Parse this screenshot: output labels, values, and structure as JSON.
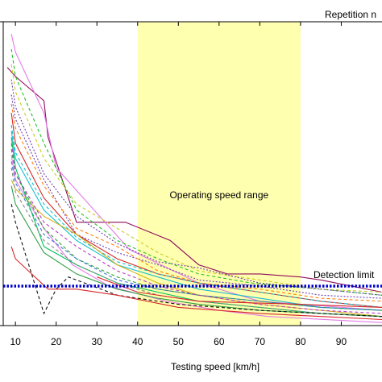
{
  "chart_data": {
    "type": "line",
    "xlabel": "Testing speed [km/h]",
    "ylabel": "",
    "title": "",
    "xlim": [
      7,
      100
    ],
    "ylim": [
      0,
      100
    ],
    "xticks": [
      10,
      20,
      30,
      40,
      50,
      60,
      70,
      80,
      90
    ],
    "xtick_labels": [
      "10",
      "20",
      "30",
      "40",
      "50",
      "60",
      "70",
      "80",
      "90"
    ],
    "grid": false,
    "legend_text": "Repetition n",
    "highlight_band": {
      "x": [
        40,
        80
      ],
      "label": "Operating speed range",
      "color": "#ffffb0"
    },
    "threshold": {
      "y": 13,
      "label": "Detection limit",
      "color": "#0000cc"
    },
    "series": [
      {
        "color": "#8e0c5a",
        "dash": "",
        "x": [
          8,
          10,
          17,
          18,
          25,
          37,
          48,
          55,
          62,
          70,
          80,
          85,
          100
        ],
        "y": [
          85,
          82,
          74,
          62,
          34,
          34,
          28,
          20,
          17,
          17,
          16,
          15,
          11
        ]
      },
      {
        "color": "#e27be6",
        "dash": "",
        "x": [
          9,
          10,
          17,
          20,
          28,
          38,
          55,
          70,
          100
        ],
        "y": [
          96,
          90,
          70,
          52,
          40,
          25,
          14,
          8,
          5
        ]
      },
      {
        "color": "#e27be6",
        "dash": "",
        "x": [
          9,
          10,
          17,
          24,
          33,
          47,
          60,
          72,
          100
        ],
        "y": [
          56,
          48,
          32,
          20,
          13,
          8,
          5,
          3,
          1
        ]
      },
      {
        "color": "#21c221",
        "dash": "4 3",
        "x": [
          9,
          10,
          17,
          25,
          35,
          45,
          55,
          68,
          85,
          100
        ],
        "y": [
          91,
          82,
          60,
          38,
          28,
          22,
          17,
          14,
          12,
          10
        ]
      },
      {
        "color": "#c9cc2a",
        "dash": "4 3",
        "x": [
          9,
          10,
          17,
          25,
          35,
          45,
          55,
          70,
          85,
          100
        ],
        "y": [
          86,
          77,
          55,
          40,
          32,
          24,
          18,
          15,
          12,
          11
        ]
      },
      {
        "color": "#6b3fb0",
        "dash": "2 2",
        "x": [
          9,
          10,
          17,
          25,
          35,
          45,
          55,
          70,
          85,
          100
        ],
        "y": [
          81,
          72,
          50,
          36,
          27,
          21,
          19,
          14,
          12,
          10
        ]
      },
      {
        "color": "#6b3fb0",
        "dash": "2 2",
        "x": [
          9,
          10,
          17,
          25,
          35,
          45,
          55,
          70,
          85,
          100
        ],
        "y": [
          76,
          68,
          48,
          30,
          24,
          20,
          15,
          13,
          10,
          9
        ]
      },
      {
        "color": "#ff7f0e",
        "dash": "4 3",
        "x": [
          9,
          10,
          17,
          25,
          35,
          45,
          55,
          70,
          85,
          100
        ],
        "y": [
          73,
          65,
          46,
          32,
          26,
          18,
          14,
          12,
          9,
          8
        ]
      },
      {
        "color": "#d62728",
        "dash": "",
        "x": [
          9,
          10,
          17,
          25,
          35,
          45,
          55,
          70,
          85,
          100
        ],
        "y": [
          70,
          60,
          42,
          30,
          22,
          17,
          14,
          11,
          8,
          6
        ]
      },
      {
        "color": "#17becf",
        "dash": "4 3",
        "x": [
          9,
          10,
          17,
          25,
          35,
          45,
          55,
          70,
          85,
          100
        ],
        "y": [
          66,
          57,
          40,
          29,
          21,
          17,
          14,
          11,
          8,
          6
        ]
      },
      {
        "color": "#17becf",
        "dash": "",
        "x": [
          9,
          10,
          17,
          25,
          35,
          45,
          55,
          70,
          85,
          100
        ],
        "y": [
          64,
          55,
          38,
          28,
          20,
          16,
          12,
          9,
          6,
          5
        ]
      },
      {
        "color": "#d6b21c",
        "dash": "",
        "x": [
          9,
          10,
          17,
          25,
          35,
          45,
          55,
          70,
          85,
          100
        ],
        "y": [
          48,
          45,
          36,
          30,
          20,
          14,
          10,
          7,
          5,
          3
        ]
      },
      {
        "color": "#2ca02c",
        "dash": "4 3",
        "x": [
          9,
          10,
          17,
          25,
          35,
          45,
          55,
          70,
          85,
          100
        ],
        "y": [
          58,
          50,
          32,
          22,
          16,
          12,
          10,
          8,
          6,
          5
        ]
      },
      {
        "color": "#3a7bd5",
        "dash": "4 3",
        "x": [
          9,
          10,
          17,
          25,
          35,
          45,
          55,
          70,
          85,
          100
        ],
        "y": [
          54,
          47,
          30,
          22,
          15,
          12,
          10,
          8,
          6,
          5
        ]
      },
      {
        "color": "#00c05a",
        "dash": "",
        "x": [
          9,
          10,
          17,
          25,
          35,
          45,
          55,
          70,
          85,
          100
        ],
        "y": [
          62,
          52,
          26,
          20,
          14,
          11,
          8,
          6,
          4,
          3
        ]
      },
      {
        "color": "#b83cc4",
        "dash": "4 3",
        "x": [
          9,
          10,
          17,
          25,
          35,
          45,
          55,
          70,
          85,
          100
        ],
        "y": [
          60,
          50,
          34,
          26,
          18,
          13,
          10,
          7,
          5,
          4
        ]
      },
      {
        "color": "#888888",
        "dash": "4 3",
        "x": [
          9,
          10,
          17,
          25,
          35,
          45,
          55,
          70,
          85,
          100
        ],
        "y": [
          52,
          44,
          28,
          20,
          14,
          10,
          8,
          6,
          4,
          3
        ]
      },
      {
        "color": "#2f9e44",
        "dash": "",
        "x": [
          9,
          10,
          17,
          25,
          35,
          45,
          55,
          70,
          85,
          100
        ],
        "y": [
          46,
          40,
          24,
          17,
          12,
          9,
          7,
          5,
          4,
          3
        ]
      },
      {
        "color": "#111111",
        "dash": "4 3",
        "x": [
          9,
          10,
          17,
          20,
          23,
          35,
          50,
          70,
          100
        ],
        "y": [
          40,
          34,
          4,
          12,
          16,
          10,
          7,
          5,
          3
        ]
      },
      {
        "color": "#d62728",
        "dash": "",
        "x": [
          9,
          10,
          18,
          25,
          35,
          50,
          70,
          100
        ],
        "y": [
          26,
          22,
          12,
          12,
          10,
          6,
          4,
          2
        ]
      },
      {
        "color": "#d62728",
        "dash": "",
        "x": [
          30,
          40,
          55,
          80,
          100
        ],
        "y": [
          16,
          11,
          8,
          7,
          6
        ]
      }
    ]
  }
}
